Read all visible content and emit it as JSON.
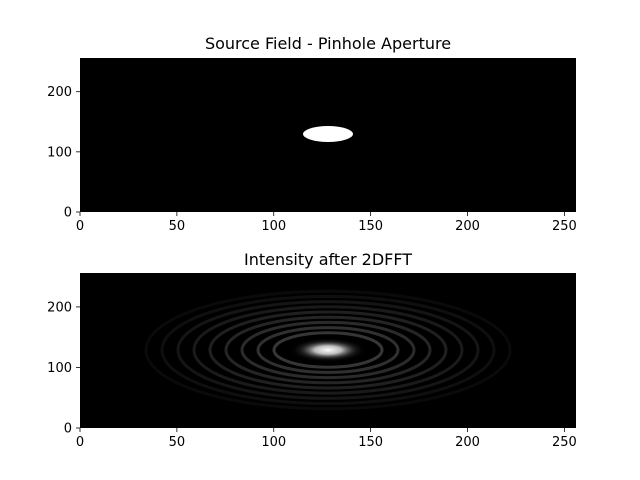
{
  "chart_data": [
    {
      "type": "heatmap",
      "title": "Source Field - Pinhole Aperture",
      "colormap": "gray",
      "xlim": [
        0,
        256
      ],
      "ylim": [
        0,
        256
      ],
      "xticks": [
        0,
        50,
        100,
        150,
        200,
        250
      ],
      "yticks": [
        0,
        100,
        200
      ],
      "image": {
        "kind": "pinhole",
        "center": [
          128,
          128
        ],
        "radius": 12.5,
        "value_inside": 1,
        "value_outside": 0
      }
    },
    {
      "type": "heatmap",
      "title": "Intensity after 2DFFT",
      "colormap": "gray",
      "xlim": [
        0,
        256
      ],
      "ylim": [
        0,
        256
      ],
      "xticks": [
        0,
        50,
        100,
        150,
        200,
        250
      ],
      "yticks": [
        0,
        100,
        200
      ],
      "image": {
        "kind": "airy-pattern",
        "center": [
          128,
          128
        ],
        "peak": 1
      }
    }
  ]
}
